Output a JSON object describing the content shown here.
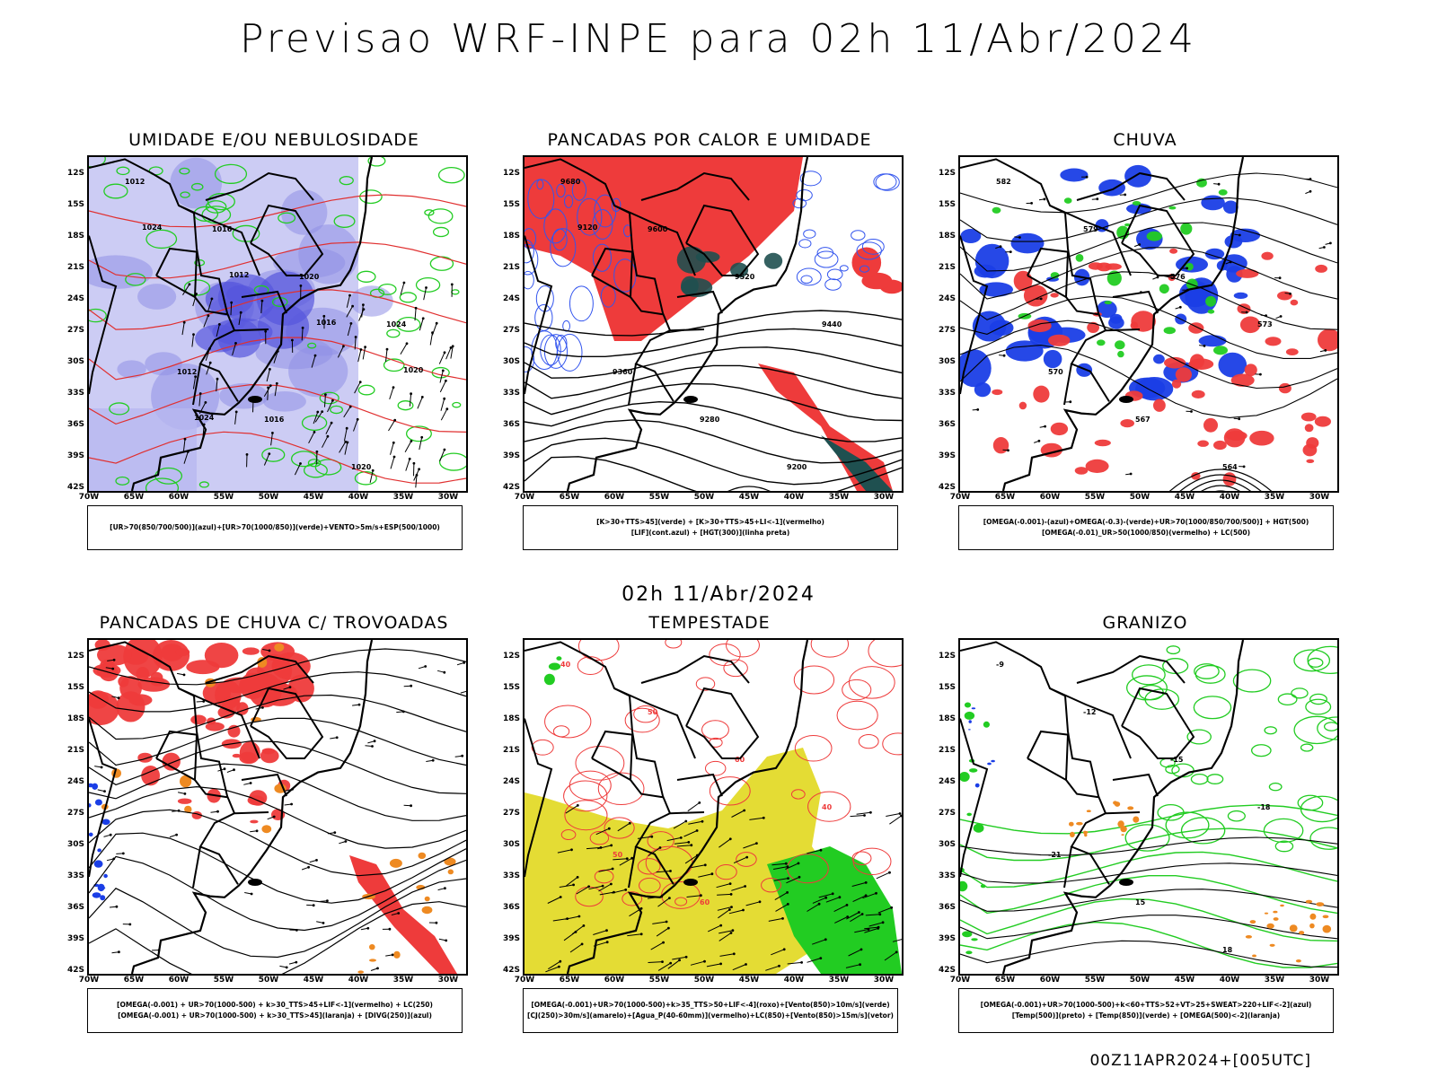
{
  "title": "Previsao WRF-INPE  para 02h 11/Abr/2024",
  "mid_title": "02h 11/Abr/2024",
  "footer": "00Z11APR2024+[005UTC]",
  "lat_ticks": [
    "12S",
    "15S",
    "18S",
    "21S",
    "24S",
    "27S",
    "30S",
    "33S",
    "36S",
    "39S",
    "42S"
  ],
  "lon_ticks": [
    "70W",
    "65W",
    "60W",
    "55W",
    "50W",
    "45W",
    "40W",
    "35W",
    "30W"
  ],
  "panels": [
    {
      "title": "UMIDADE E/OU NEBULOSIDADE",
      "legend": [
        "[UR>70(850/700/500)](azul)+[UR>70(1000/850)](verde)+VENTO>5m/s+ESP(500/1000)"
      ],
      "colors": [
        "#8f8fe6",
        "#22cc22",
        "#e03030"
      ],
      "contour_labels": [
        "1012",
        "1016",
        "1020",
        "1024"
      ]
    },
    {
      "title": "PANCADAS POR CALOR E UMIDADE",
      "legend": [
        "[K>30+TTS>45](verde) + [K>30+TTS>45+LI<-1](vermelho)",
        "[LIF](cont.azul) + [HGT(300)](linha preta)"
      ],
      "colors": [
        "#1f5050",
        "#ee3b3b",
        "#3355ee"
      ],
      "contour_labels": [
        "9680",
        "9600",
        "9520",
        "9440",
        "9360",
        "9280",
        "9200",
        "9120"
      ]
    },
    {
      "title": "CHUVA",
      "legend": [
        "[OMEGA(-0.001)-(azul)+OMEGA(-0.3)-(verde)+UR>70(1000/850/700/500)] + HGT(500)",
        "[OMEGA(-0.01)_UR>50(1000/850)(vermelho) + LC(500)"
      ],
      "colors": [
        "#1a3ee6",
        "#22cc22",
        "#ee3b3b"
      ],
      "contour_labels": [
        "582",
        "579",
        "576",
        "573",
        "570",
        "567",
        "564"
      ]
    },
    {
      "title": "PANCADAS DE CHUVA C/ TROVOADAS",
      "legend": [
        "[OMEGA(-0.001) + UR>70(1000-500) + k>30_TTS>45+LIF<-1](vermelho) + LC(250)",
        "[OMEGA(-0.001) + UR>70(1000-500) + k>30_TTS>45](laranja) + [DIVG(250)](azul)"
      ],
      "colors": [
        "#ee3b3b",
        "#ee8a22",
        "#1a3ee6"
      ],
      "contour_labels": []
    },
    {
      "title": "TEMPESTADE",
      "legend": [
        "[OMEGA(-0.001)+UR>70(1000-500)+k>35_TTS>50+LIF<-4](roxo)+[Vento(850)>10m/s](verde)",
        "[CJ(250)>30m/s](amarelo)+[Agua_P(40-60mm)](vermelho)+LC(850)+[Vento(850)>15m/s](vetor)"
      ],
      "colors": [
        "#e4dc34",
        "#22cc22",
        "#ee3b3b"
      ],
      "contour_labels": [
        "40",
        "50",
        "60"
      ]
    },
    {
      "title": "GRANIZO",
      "legend": [
        "[OMEGA(-0.001)+UR>70(1000-500)+k<60+TTS>52+VT>25+SWEAT>220+LIF<-2](azul)",
        "[Temp(500)](preto) + [Temp(850)](verde) + [OMEGA(500)<-2](laranja)"
      ],
      "colors": [
        "#22cc22",
        "#ee8a22",
        "#000000"
      ],
      "contour_labels": [
        "-9",
        "-12",
        "-15",
        "-18",
        "-21",
        "15",
        "18"
      ]
    }
  ]
}
